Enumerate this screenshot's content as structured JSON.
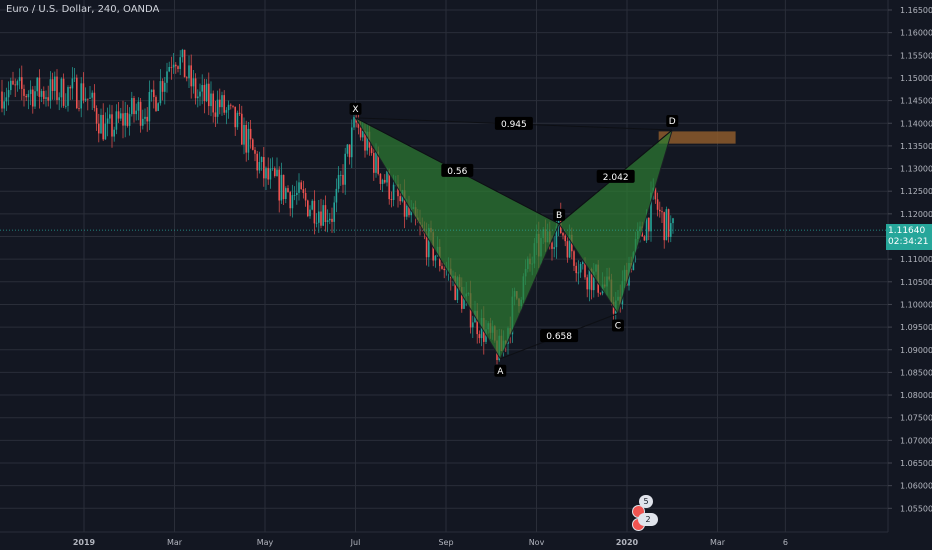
{
  "header": {
    "symbol_title": "Euro / U.S. Dollar, 240, OANDA"
  },
  "price_scale": {
    "labels": [
      "1.16500",
      "1.16000",
      "1.15500",
      "1.15000",
      "1.14500",
      "1.14000",
      "1.13500",
      "1.13000",
      "1.12500",
      "1.12000",
      "1.11500",
      "1.11000",
      "1.10500",
      "1.10000",
      "1.09500",
      "1.09000",
      "1.08500",
      "1.08000",
      "1.07500",
      "1.07000",
      "1.06500",
      "1.06000",
      "1.05500"
    ],
    "current_price": "1.11640",
    "countdown": "02:34:21"
  },
  "time_scale": {
    "labels": [
      "2019",
      "Mar",
      "May",
      "Jul",
      "Sep",
      "Nov",
      "2020",
      "Mar",
      "6"
    ]
  },
  "pattern": {
    "points": [
      {
        "label": "X",
        "t": 6.0,
        "price": 1.1412
      },
      {
        "label": "A",
        "t": 9.2,
        "price": 1.088
      },
      {
        "label": "B",
        "t": 10.5,
        "price": 1.1178
      },
      {
        "label": "C",
        "t": 11.8,
        "price": 1.098
      },
      {
        "label": "D",
        "t": 13.0,
        "price": 1.1385
      }
    ],
    "ratios": [
      {
        "text": "0.56",
        "from": "X",
        "to": "B"
      },
      {
        "text": "0.658",
        "from": "A",
        "to": "C"
      },
      {
        "text": "2.042",
        "from": "B",
        "to": "D"
      },
      {
        "text": "0.945",
        "from": "X",
        "to": "D"
      }
    ],
    "target_zone": {
      "price_low": 1.1355,
      "price_high": 1.1382,
      "t_from": 12.7,
      "t_to": 14.4
    }
  },
  "badges": {
    "top_count": "5",
    "bottom_count": "2"
  },
  "colors": {
    "background": "#131722",
    "grid": "#2a2e39",
    "up_candle": "#26a69a",
    "down_candle": "#ef5350",
    "pattern_fill": "#2e7d32",
    "pattern_line": "#1b1e25",
    "zone": "#8d5a2b",
    "price_line": "#26a69a"
  },
  "chart_data": {
    "type": "candlestick",
    "title": "Euro / U.S. Dollar, 240, OANDA",
    "xlabel": "",
    "ylabel": "",
    "ylim": [
      1.0505,
      1.1675
    ],
    "x_ticks": [
      "2019",
      "Mar",
      "May",
      "Jul",
      "Sep",
      "Nov",
      "2020",
      "Mar",
      "6"
    ],
    "series": [
      {
        "x": [
          0.0,
          0.5,
          1.0,
          1.5,
          2.0,
          2.5,
          3.0,
          3.5,
          4.0,
          4.5,
          5.0,
          5.5,
          6.0,
          6.5,
          7.0,
          7.5,
          8.0,
          8.5,
          9.0,
          9.2,
          9.5,
          10.0,
          10.5,
          11.0,
          11.5,
          11.8,
          12.0,
          12.3,
          12.6,
          12.8,
          13.0
        ],
        "close": [
          1.147,
          1.138,
          1.142,
          1.144,
          1.156,
          1.146,
          1.144,
          1.138,
          1.128,
          1.125,
          1.122,
          1.12,
          1.14,
          1.13,
          1.122,
          1.115,
          1.108,
          1.099,
          1.092,
          1.089,
          1.1,
          1.112,
          1.1175,
          1.108,
          1.104,
          1.099,
          1.108,
          1.115,
          1.123,
          1.118,
          1.1164
        ]
      }
    ]
  }
}
